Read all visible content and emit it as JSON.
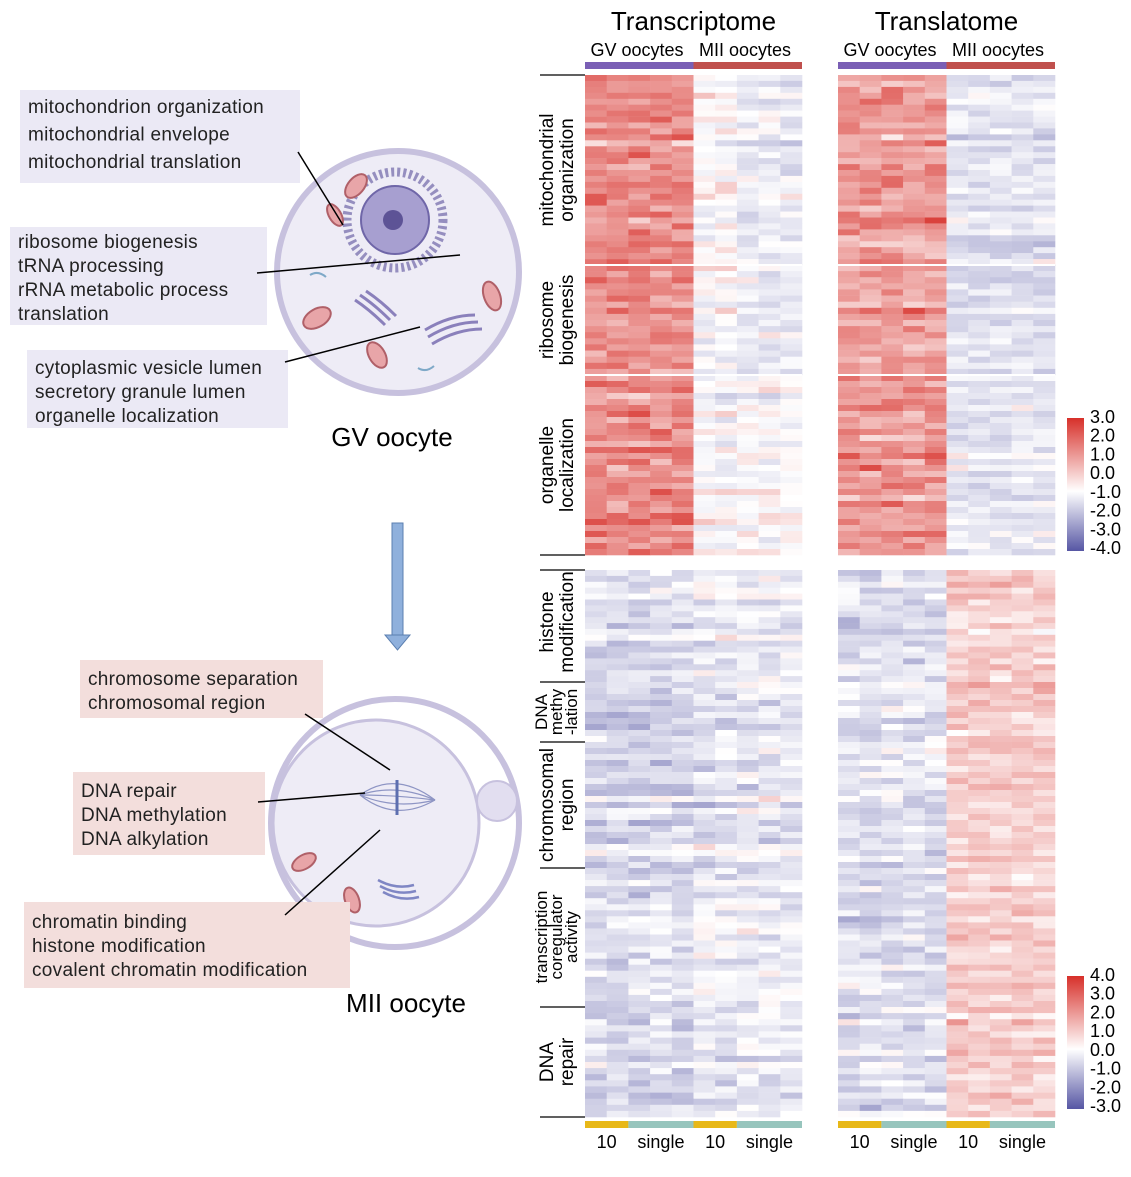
{
  "cells": {
    "gv": {
      "label": "GV oocyte",
      "boxes": [
        {
          "lines": [
            "mitochondrion organization",
            "mitochondrial envelope",
            "mitochondrial translation"
          ]
        },
        {
          "lines": [
            "ribosome biogenesis",
            "tRNA processing",
            "rRNA metabolic process",
            "translation"
          ]
        },
        {
          "lines": [
            "cytoplasmic vesicle lumen",
            "secretory granule lumen",
            "organelle localization"
          ]
        }
      ]
    },
    "mii": {
      "label": "MII oocyte",
      "boxes": [
        {
          "lines": [
            "chromosome separation",
            "chromosomal region"
          ]
        },
        {
          "lines": [
            "DNA repair",
            "DNA methylation",
            "DNA alkylation"
          ]
        },
        {
          "lines": [
            "chromatin binding",
            "histone modification",
            "covalent chromatin modification"
          ]
        }
      ]
    }
  },
  "colors": {
    "gv_box": "#ebe9f5",
    "mii_box": "#f3dedc",
    "gv_group": "#7a5fb5",
    "mii_group": "#c0504d",
    "group10": "#e8b818",
    "single": "#97c5bd",
    "high": "#d7302a",
    "mid": "#ffffff",
    "low": "#5656a4",
    "arrow": "#8fb0dc"
  },
  "heatmaps": [
    {
      "title": "Transcriptome",
      "groups": [
        "GV oocytes",
        "MII oocytes"
      ],
      "subgroups": [
        "10",
        "single",
        "10",
        "single"
      ]
    },
    {
      "title": "Translatome",
      "groups": [
        "GV oocytes",
        "MII oocytes"
      ],
      "subgroups": [
        "10",
        "single",
        "10",
        "single"
      ]
    }
  ],
  "row_groups": {
    "top": [
      {
        "lines": [
          "mitochondrial",
          "organization"
        ]
      },
      {
        "lines": [
          "ribosome",
          "biogenesis"
        ]
      },
      {
        "lines": [
          "organelle",
          "localization"
        ]
      }
    ],
    "bottom": [
      {
        "lines": [
          "histone",
          "modification"
        ]
      },
      {
        "lines": [
          "DNA",
          "methy",
          "-lation"
        ]
      },
      {
        "lines": [
          "chromosomal",
          "region"
        ]
      },
      {
        "lines": [
          "transcription",
          "coregulator",
          "activity"
        ]
      },
      {
        "lines": [
          "DNA",
          "repair"
        ]
      }
    ]
  },
  "color_scales": [
    {
      "ticks": [
        "3.0",
        "2.0",
        "1.0",
        "0.0",
        "-1.0",
        "-2.0",
        "-3.0",
        "-4.0"
      ],
      "range": [
        -4,
        3
      ]
    },
    {
      "ticks": [
        "4.0",
        "3.0",
        "2.0",
        "1.0",
        "0.0",
        "-1.0",
        "-2.0",
        "-3.0"
      ],
      "range": [
        -3,
        4
      ]
    }
  ]
}
